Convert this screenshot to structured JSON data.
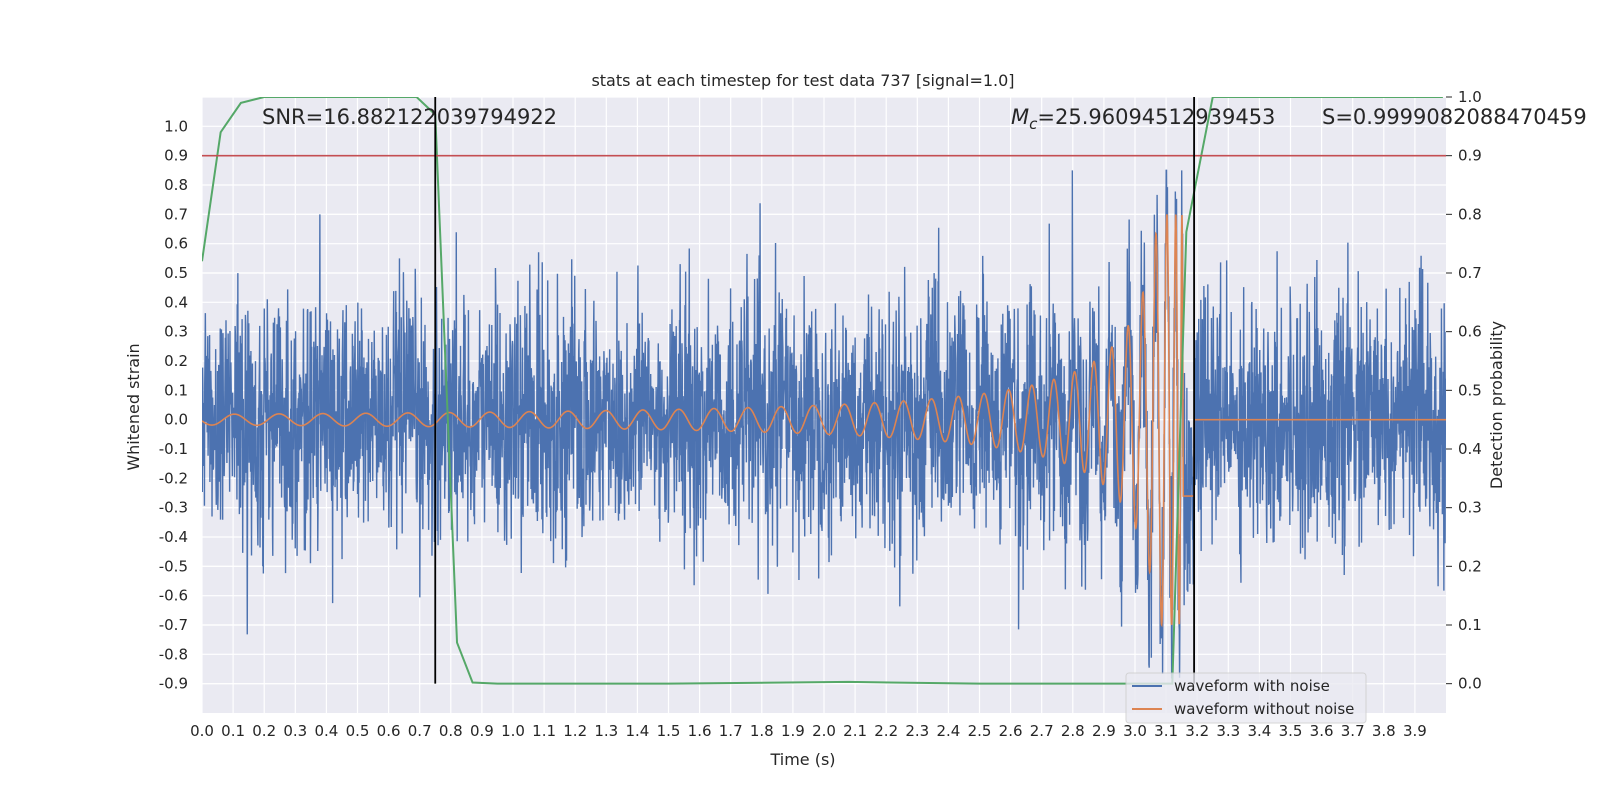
{
  "chart_data": {
    "type": "line",
    "title": "stats at each timestep for test data 737 [signal=1.0]",
    "xlabel": "Time (s)",
    "ylabel_left": "Whitened strain",
    "ylabel_right": "Detection probability",
    "xlim": [
      0.0,
      4.0
    ],
    "ylim_left": [
      -1.0,
      1.1
    ],
    "ylim_right": [
      -0.05,
      1.0
    ],
    "x_ticks": [
      "0.0",
      "0.1",
      "0.2",
      "0.3",
      "0.4",
      "0.5",
      "0.6",
      "0.7",
      "0.8",
      "0.9",
      "1.0",
      "1.1",
      "1.2",
      "1.3",
      "1.4",
      "1.5",
      "1.6",
      "1.7",
      "1.8",
      "1.9",
      "2.0",
      "2.1",
      "2.2",
      "2.3",
      "2.4",
      "2.5",
      "2.6",
      "2.7",
      "2.8",
      "2.9",
      "3.0",
      "3.1",
      "3.2",
      "3.3",
      "3.4",
      "3.5",
      "3.6",
      "3.7",
      "3.8",
      "3.9"
    ],
    "y_ticks_left": [
      "1.0",
      "0.9",
      "0.8",
      "0.7",
      "0.6",
      "0.5",
      "0.4",
      "0.3",
      "0.2",
      "0.1",
      "0.0",
      "-0.1",
      "-0.2",
      "-0.3",
      "-0.4",
      "-0.5",
      "-0.6",
      "-0.7",
      "-0.8",
      "-0.9"
    ],
    "y_ticks_right": [
      "1.0",
      "0.9",
      "0.8",
      "0.7",
      "0.6",
      "0.5",
      "0.4",
      "0.3",
      "0.2",
      "0.1",
      "0.0"
    ],
    "grid": true,
    "legend_position": "bottom-right",
    "annotations": {
      "snr": "SNR=16.882122039794922",
      "mc": "=25.96094512939453",
      "mc_symbol": "M",
      "mc_subscript": "c",
      "s": "S=0.9999082088470459"
    },
    "threshold_line": {
      "axis": "right",
      "y": 0.9,
      "color": "#c44e52"
    },
    "vertical_lines": {
      "x": [
        0.75,
        3.19
      ],
      "color": "#000000"
    },
    "series": [
      {
        "name": "waveform with noise",
        "axis": "left",
        "color": "#4c72b0",
        "kind": "noise",
        "sigma": 0.2,
        "max": 0.85,
        "min": -0.88
      },
      {
        "name": "waveform without noise",
        "axis": "left",
        "color": "#dd8452",
        "kind": "chirp",
        "start_amplitude": 0.02,
        "peak_amplitude": 0.7,
        "merger_time": 3.15,
        "end_time": 3.19
      },
      {
        "axis": "right",
        "color": "#55a868",
        "x": [
          0.0,
          0.06,
          0.125,
          0.2,
          0.5,
          0.69,
          0.75,
          0.82,
          0.87,
          0.95,
          1.5,
          2.08,
          2.5,
          3.0,
          3.12,
          3.165,
          3.25,
          3.5,
          3.99
        ],
        "y": [
          0.72,
          0.94,
          0.99,
          1.0,
          1.0,
          1.0,
          0.97,
          0.07,
          0.002,
          0.0,
          0.0,
          0.003,
          0.0,
          0.0,
          0.0,
          0.77,
          1.0,
          1.0,
          1.0
        ]
      }
    ]
  }
}
